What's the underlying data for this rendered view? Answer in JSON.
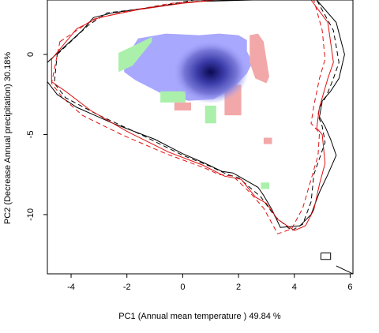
{
  "chart_data": {
    "type": "scatter",
    "title": "",
    "xlabel": "PC1 (Annual mean temperature ) 49.84 %",
    "ylabel": "PC2 (Decrease Annual precipitation) 30.18%",
    "xlim": [
      -4.85,
      6.1
    ],
    "ylim": [
      -13.7,
      3.4
    ],
    "x_ticks": [
      -4,
      -2,
      0,
      2,
      4,
      6
    ],
    "y_ticks": [
      0,
      -5,
      -10
    ],
    "grid": false,
    "legend": "none",
    "series": [
      {
        "style": "solid",
        "color": "#000000",
        "x": [
          -4.85,
          -3.6,
          -3.2,
          -2.5,
          -1.3,
          0.4,
          2.5,
          4.8,
          5.5,
          5.8,
          5.6,
          5.3,
          5.0,
          4.9,
          5.1,
          5.3,
          5.5,
          5.2,
          4.9,
          4.6,
          4.2,
          3.5,
          3.2,
          2.9,
          2.7,
          2.3,
          2.0,
          1.8,
          1.4,
          0.8,
          0.0,
          -1.0,
          -2.5,
          -3.8,
          -4.5,
          -4.85
        ],
        "y": [
          -0.5,
          1.5,
          2.3,
          2.6,
          2.9,
          3.3,
          3.4,
          3.4,
          2.0,
          0.0,
          -1.5,
          -2.3,
          -2.9,
          -3.9,
          -4.5,
          -5.3,
          -6.3,
          -7.5,
          -8.6,
          -10.0,
          -10.7,
          -10.8,
          -9.7,
          -8.8,
          -8.3,
          -7.9,
          -7.6,
          -7.4,
          -7.3,
          -6.8,
          -6.2,
          -5.3,
          -4.3,
          -3.3,
          -2.5,
          -1.7
        ]
      },
      {
        "style": "dashed",
        "color": "#000000",
        "x": [
          -4.5,
          -3.4,
          -2.7,
          -1.2,
          0.4,
          1.5,
          4.8,
          5.4,
          5.6,
          5.4,
          5.15,
          4.9,
          4.85,
          5.0,
          5.1,
          4.7,
          4.6,
          4.3,
          3.9,
          3.3,
          2.8,
          2.0,
          1.6,
          1.0,
          0.0,
          -1.5,
          -3.0,
          -4.2,
          -4.6
        ],
        "y": [
          0.0,
          1.8,
          2.6,
          2.9,
          3.4,
          3.4,
          3.4,
          1.5,
          -0.5,
          -1.5,
          -2.6,
          -3.3,
          -3.8,
          -4.5,
          -5.5,
          -7.5,
          -9.2,
          -10.6,
          -11.0,
          -10.1,
          -8.9,
          -7.7,
          -7.5,
          -7.0,
          -6.3,
          -5.0,
          -3.8,
          -2.7,
          -1.8
        ]
      },
      {
        "style": "solid",
        "color": "#e01010",
        "x": [
          -4.7,
          -3.8,
          -3.0,
          -1.6,
          0.0,
          1.2,
          4.6,
          5.2,
          5.4,
          5.2,
          4.9,
          4.8,
          5.0,
          5.1,
          4.9,
          4.7,
          4.4,
          4.0,
          3.4,
          3.0,
          2.6,
          2.1,
          1.5,
          0.7,
          -0.5,
          -2.0,
          -3.3,
          -4.2,
          -4.7
        ],
        "y": [
          -0.3,
          1.6,
          2.3,
          2.8,
          3.2,
          3.4,
          3.4,
          2.0,
          -0.5,
          -1.5,
          -3.3,
          -4.6,
          -5.0,
          -6.8,
          -8.1,
          -9.7,
          -10.7,
          -11.0,
          -10.3,
          -9.3,
          -8.9,
          -7.8,
          -7.6,
          -6.9,
          -6.1,
          -4.8,
          -3.5,
          -2.3,
          -1.7
        ]
      },
      {
        "style": "dashed",
        "color": "#e01010",
        "x": [
          -4.4,
          -3.2,
          -2.0,
          -0.4,
          1.2,
          4.7,
          5.0,
          5.1,
          4.9,
          4.7,
          4.6,
          4.9,
          4.85,
          4.6,
          4.3,
          3.9,
          3.4,
          2.9,
          2.4,
          1.8,
          1.3,
          0.8,
          -0.6,
          -2.2,
          -3.6,
          -4.3,
          -4.7
        ],
        "y": [
          0.8,
          2.2,
          2.7,
          3.2,
          3.4,
          3.4,
          1.5,
          -0.3,
          -1.5,
          -3.2,
          -4.3,
          -4.9,
          -6.3,
          -7.8,
          -9.6,
          -10.9,
          -11.2,
          -9.6,
          -8.6,
          -7.6,
          -7.5,
          -7.1,
          -6.2,
          -5.0,
          -3.8,
          -2.7,
          -1.8
        ]
      }
    ],
    "density": {
      "peak": {
        "x": 1.0,
        "y": -1.1
      },
      "regions": [
        {
          "color": "#a8a8ff",
          "x": [
            -2.1,
            -1.6,
            -0.6,
            0.6,
            1.3,
            2.0,
            2.3,
            2.3,
            2.5,
            2.3,
            1.8,
            1.1,
            0.2,
            -0.8,
            -1.7,
            -2.1
          ],
          "y": [
            -0.4,
            1.0,
            1.3,
            1.2,
            1.3,
            1.2,
            0.9,
            0.2,
            -0.5,
            -1.2,
            -2.1,
            -2.8,
            -2.9,
            -2.4,
            -1.6,
            -1.1
          ]
        },
        {
          "color": "#aaf0aa",
          "x": [
            -2.3,
            -1.8,
            -1.1,
            -1.1,
            -1.8,
            -2.3
          ],
          "y": [
            0.1,
            0.5,
            1.1,
            0.8,
            -0.7,
            -1.1
          ]
        },
        {
          "color": "#f2a8a8",
          "x": [
            2.4,
            2.7,
            2.9,
            3.1,
            3.0,
            2.6,
            2.4
          ],
          "y": [
            1.2,
            1.3,
            0.8,
            -1.4,
            -1.8,
            -1.5,
            -0.5
          ]
        },
        {
          "color": "#f2a8a8",
          "x": [
            1.5,
            2.1,
            2.1,
            1.5
          ],
          "y": [
            -1.9,
            -1.9,
            -3.8,
            -3.8
          ]
        },
        {
          "color": "#aaf0aa",
          "x": [
            -0.8,
            0.1,
            0.1,
            -0.8
          ],
          "y": [
            -2.3,
            -2.3,
            -3.0,
            -3.0
          ]
        },
        {
          "color": "#aaf0aa",
          "x": [
            0.8,
            1.2,
            1.2,
            0.8
          ],
          "y": [
            -3.2,
            -3.2,
            -4.3,
            -4.3
          ]
        },
        {
          "color": "#f2a8a8",
          "x": [
            2.9,
            3.2,
            3.2,
            2.9
          ],
          "y": [
            -5.2,
            -5.2,
            -5.6,
            -5.6
          ]
        },
        {
          "color": "#aaf0aa",
          "x": [
            2.8,
            3.1,
            3.1,
            2.8
          ],
          "y": [
            -8.0,
            -8.0,
            -8.4,
            -8.4
          ]
        },
        {
          "color": "#f2a8a8",
          "x": [
            -0.3,
            0.3,
            0.3,
            -0.3
          ],
          "y": [
            -3.0,
            -3.0,
            -3.5,
            -3.5
          ]
        }
      ]
    },
    "extra_islands": [
      {
        "color": "#000000",
        "x": [
          4.95,
          5.3,
          5.3,
          4.95,
          4.95
        ],
        "y": [
          -12.4,
          -12.4,
          -12.8,
          -12.8,
          -12.4
        ]
      },
      {
        "color": "#000000",
        "x": [
          5.5,
          6.1
        ],
        "y": [
          -13.2,
          -13.7
        ]
      }
    ]
  }
}
